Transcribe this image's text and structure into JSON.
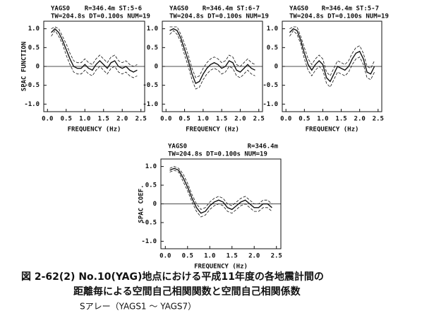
{
  "chart_data": [
    {
      "type": "line",
      "title": "YAGS0",
      "subtitle": "R=346.4m ST:5-6",
      "annotation": "TW=204.8s DT=0.100s NUM=19",
      "ylabel": "SPAC FUNCTION",
      "xlabel": "FREQUENCY (Hz)",
      "x": [
        0.1,
        0.2,
        0.3,
        0.4,
        0.5,
        0.6,
        0.7,
        0.8,
        0.9,
        1.0,
        1.1,
        1.2,
        1.3,
        1.4,
        1.5,
        1.6,
        1.7,
        1.8,
        1.9,
        2.0,
        2.1,
        2.2,
        2.3,
        2.4
      ],
      "series": [
        {
          "color": "#111",
          "style": "solid",
          "values": [
            0.9,
            1.0,
            0.9,
            0.7,
            0.45,
            0.2,
            0.0,
            -0.05,
            -0.05,
            0.05,
            -0.05,
            -0.1,
            0.05,
            0.15,
            0.05,
            -0.05,
            0.1,
            0.15,
            0.0,
            -0.05,
            0.0,
            -0.1,
            -0.15,
            -0.1
          ]
        },
        {
          "color": "#111",
          "style": "dashed",
          "values": [
            1.0,
            1.05,
            1.0,
            0.8,
            0.6,
            0.35,
            0.15,
            0.1,
            0.1,
            0.2,
            0.1,
            0.05,
            0.2,
            0.3,
            0.2,
            0.1,
            0.25,
            0.3,
            0.15,
            0.1,
            0.15,
            0.05,
            0.0,
            0.05
          ]
        },
        {
          "color": "#111",
          "style": "dashed",
          "values": [
            0.8,
            0.95,
            0.8,
            0.6,
            0.3,
            0.05,
            -0.15,
            -0.2,
            -0.2,
            -0.1,
            -0.2,
            -0.25,
            -0.1,
            0.0,
            -0.1,
            -0.2,
            -0.05,
            0.0,
            -0.15,
            -0.2,
            -0.15,
            -0.25,
            -0.3,
            -0.25
          ]
        }
      ],
      "xlim": [
        -0.1,
        2.6
      ],
      "ylim": [
        -1.2,
        1.2
      ],
      "xticks": [
        {
          "value": 0,
          "label": "0.0"
        },
        0.5,
        {
          "value": 1,
          "label": "1.0"
        },
        1.5,
        {
          "value": 2,
          "label": "2.0"
        },
        2.5
      ],
      "yticks": [
        {
          "value": 1,
          "label": "1.0"
        },
        0.5,
        0,
        -0.5,
        {
          "value": -1,
          "label": "-1.0"
        }
      ],
      "zero_line": true
    },
    {
      "type": "line",
      "title": "YAGS0",
      "subtitle": "R=346.4m ST:6-7",
      "annotation": "TW=204.8s DT=0.100s NUM=19",
      "xlabel": "FREQUENCY (Hz)",
      "x": [
        0.1,
        0.2,
        0.3,
        0.4,
        0.5,
        0.6,
        0.7,
        0.8,
        0.9,
        1.0,
        1.1,
        1.2,
        1.3,
        1.4,
        1.5,
        1.6,
        1.7,
        1.8,
        1.9,
        2.0,
        2.1,
        2.2,
        2.3,
        2.4
      ],
      "series": [
        {
          "color": "#111",
          "style": "solid",
          "values": [
            0.95,
            1.0,
            0.95,
            0.75,
            0.45,
            0.15,
            -0.2,
            -0.45,
            -0.4,
            -0.2,
            -0.05,
            0.05,
            0.1,
            0.05,
            -0.05,
            0.0,
            0.15,
            0.1,
            -0.1,
            -0.15,
            -0.05,
            0.05,
            -0.05,
            -0.1
          ]
        },
        {
          "color": "#111",
          "style": "dashed",
          "values": [
            1.05,
            1.05,
            1.05,
            0.85,
            0.6,
            0.3,
            -0.05,
            -0.3,
            -0.25,
            -0.05,
            0.1,
            0.2,
            0.25,
            0.2,
            0.1,
            0.15,
            0.3,
            0.25,
            0.05,
            0.0,
            0.1,
            0.2,
            0.1,
            0.05
          ]
        },
        {
          "color": "#111",
          "style": "dashed",
          "values": [
            0.85,
            0.95,
            0.85,
            0.65,
            0.3,
            0.0,
            -0.35,
            -0.6,
            -0.55,
            -0.35,
            -0.2,
            -0.1,
            -0.05,
            -0.1,
            -0.2,
            -0.15,
            0.0,
            -0.05,
            -0.25,
            -0.3,
            -0.2,
            -0.1,
            -0.2,
            -0.25
          ]
        }
      ],
      "xlim": [
        -0.1,
        2.6
      ],
      "ylim": [
        -1.2,
        1.2
      ],
      "xticks": [
        {
          "value": 0,
          "label": "0.0"
        },
        0.5,
        {
          "value": 1,
          "label": "1.0"
        },
        1.5,
        {
          "value": 2,
          "label": "2.0"
        },
        2.5
      ],
      "yticks": [
        {
          "value": 1,
          "label": "1.0"
        },
        0.5,
        0,
        -0.5,
        {
          "value": -1,
          "label": "-1.0"
        }
      ],
      "zero_line": true
    },
    {
      "type": "line",
      "title": "YAGS0",
      "subtitle": "R=346.4m ST:5-7",
      "annotation": "TW=204.8s DT=0.100s NUM=19",
      "xlabel": "FREQUENCY (Hz)",
      "x": [
        0.1,
        0.2,
        0.3,
        0.4,
        0.5,
        0.6,
        0.7,
        0.8,
        0.9,
        1.0,
        1.1,
        1.2,
        1.3,
        1.4,
        1.5,
        1.6,
        1.7,
        1.8,
        1.9,
        2.0,
        2.1,
        2.2,
        2.3,
        2.4
      ],
      "series": [
        {
          "color": "#111",
          "style": "solid",
          "values": [
            0.9,
            1.0,
            0.95,
            0.7,
            0.35,
            0.05,
            -0.1,
            0.05,
            0.15,
            0.05,
            -0.3,
            -0.4,
            -0.2,
            0.0,
            -0.05,
            -0.1,
            0.0,
            0.2,
            0.35,
            0.4,
            0.2,
            -0.15,
            -0.2,
            0.0
          ]
        },
        {
          "color": "#111",
          "style": "dashed",
          "values": [
            1.0,
            1.05,
            1.05,
            0.8,
            0.5,
            0.2,
            0.05,
            0.2,
            0.3,
            0.2,
            -0.15,
            -0.25,
            -0.05,
            0.15,
            0.1,
            0.05,
            0.15,
            0.35,
            0.5,
            0.55,
            0.35,
            0.0,
            -0.05,
            0.15
          ]
        },
        {
          "color": "#111",
          "style": "dashed",
          "values": [
            0.8,
            0.95,
            0.85,
            0.6,
            0.2,
            -0.1,
            -0.25,
            -0.1,
            0.0,
            -0.1,
            -0.45,
            -0.55,
            -0.35,
            -0.15,
            -0.2,
            -0.25,
            -0.15,
            0.05,
            0.2,
            0.25,
            0.05,
            -0.3,
            -0.35,
            -0.15
          ]
        }
      ],
      "xlim": [
        -0.1,
        2.6
      ],
      "ylim": [
        -1.2,
        1.2
      ],
      "xticks": [
        {
          "value": 0,
          "label": "0.0"
        },
        0.5,
        {
          "value": 1,
          "label": "1.0"
        },
        1.5,
        {
          "value": 2,
          "label": "2.0"
        },
        2.5
      ],
      "yticks": [
        {
          "value": 1,
          "label": "1.0"
        },
        0.5,
        0,
        -0.5,
        {
          "value": -1,
          "label": "-1.0"
        }
      ],
      "zero_line": true
    },
    {
      "type": "line",
      "title": "YAGS0",
      "subtitle": "R=346.4m",
      "annotation": "TW=204.8s DT=0.100s NUM=19",
      "ylabel": "SPAC COEF.",
      "xlabel": "FREQUENCY (Hz)",
      "x": [
        0.1,
        0.2,
        0.3,
        0.4,
        0.5,
        0.6,
        0.7,
        0.8,
        0.9,
        1.0,
        1.1,
        1.2,
        1.3,
        1.4,
        1.5,
        1.6,
        1.7,
        1.8,
        1.9,
        2.0,
        2.1,
        2.2,
        2.3,
        2.4
      ],
      "series": [
        {
          "color": "#111",
          "style": "solid",
          "values": [
            0.9,
            0.95,
            0.9,
            0.7,
            0.45,
            0.15,
            -0.1,
            -0.25,
            -0.2,
            -0.05,
            0.05,
            0.1,
            0.05,
            -0.1,
            -0.15,
            -0.05,
            0.05,
            0.1,
            0.0,
            -0.1,
            -0.1,
            0.0,
            0.0,
            -0.1
          ]
        },
        {
          "color": "#111",
          "style": "dashed",
          "values": [
            0.95,
            1.0,
            0.95,
            0.8,
            0.55,
            0.25,
            0.0,
            -0.15,
            -0.1,
            0.05,
            0.15,
            0.2,
            0.15,
            0.0,
            -0.05,
            0.05,
            0.15,
            0.2,
            0.1,
            0.0,
            0.0,
            0.1,
            0.1,
            0.0
          ]
        },
        {
          "color": "#111",
          "style": "dashed",
          "values": [
            0.85,
            0.9,
            0.85,
            0.6,
            0.35,
            0.05,
            -0.2,
            -0.35,
            -0.3,
            -0.15,
            -0.05,
            0.0,
            -0.05,
            -0.2,
            -0.25,
            -0.15,
            -0.05,
            0.0,
            -0.1,
            -0.2,
            -0.2,
            -0.1,
            -0.1,
            -0.2
          ]
        }
      ],
      "xlim": [
        -0.1,
        2.6
      ],
      "ylim": [
        -1.2,
        1.2
      ],
      "xticks": [
        {
          "value": 0,
          "label": "0.0"
        },
        0.5,
        {
          "value": 1,
          "label": "1.0"
        },
        1.5,
        {
          "value": 2,
          "label": "2.0"
        },
        2.5
      ],
      "yticks": [
        {
          "value": 1,
          "label": "1.0"
        },
        0.5,
        0,
        -0.5,
        {
          "value": -1,
          "label": "-1.0"
        }
      ],
      "zero_line": true
    }
  ],
  "caption": [
    "図 2-62(2) No.10(YAG)地点における平成11年度の各地震計間の",
    "距離毎による空間自己相関関数と空間自己相関係数",
    "Sアレー（YAGS1 ～ YAGS7）"
  ]
}
